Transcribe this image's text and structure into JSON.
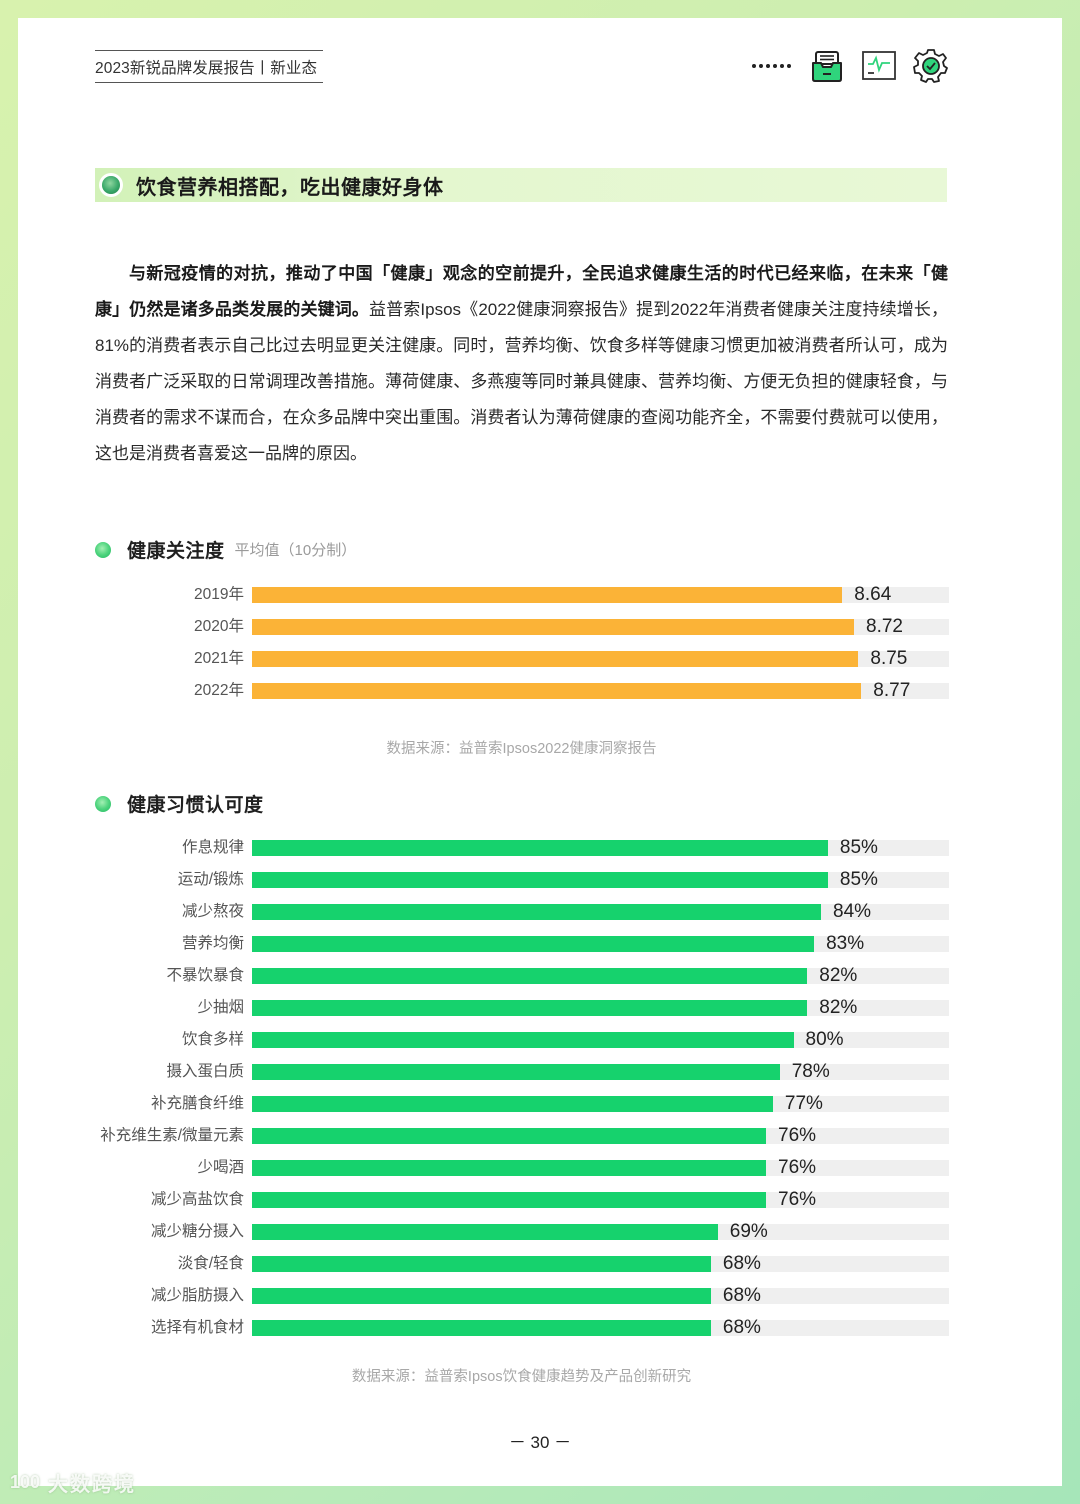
{
  "header": {
    "title": "2023新锐品牌发展报告丨新业态",
    "icons": [
      "more-dots-icon",
      "inbox-tray-icon",
      "chart-monitor-icon",
      "gear-check-icon"
    ]
  },
  "section": {
    "title": "饮食营养相搭配，吃出健康好身体"
  },
  "paragraph": {
    "bold_part": "与新冠疫情的对抗，推动了中国「健康」观念的空前提升，全民追求健康生活的时代已经来临，在未来「健康」仍然是诸多品类发展的关键词。",
    "normal_part": "益普索Ipsos《2022健康洞察报告》提到2022年消费者健康关注度持续增长，81%的消费者表示自己比过去明显更关注健康。同时，营养均衡、饮食多样等健康习惯更加被消费者所认可，成为消费者广泛采取的日常调理改善措施。薄荷健康、多燕瘦等同时兼具健康、营养均衡、方便无负担的健康轻食，与消费者的需求不谋而合，在众多品牌中突出重围。消费者认为薄荷健康的查阅功能齐全，不需要付费就可以使用，这也是消费者喜爱这一品牌的原因。"
  },
  "chart1": {
    "title": "健康关注度",
    "subtitle": "平均值（10分制）",
    "source": "数据来源：益普索Ipsos2022健康洞察报告",
    "color": "#fbb337",
    "axis_min": 4.6,
    "axis_max": 9.37,
    "rows": [
      {
        "label": "2019年",
        "value": 8.64,
        "display": "8.64"
      },
      {
        "label": "2020年",
        "value": 8.72,
        "display": "8.72"
      },
      {
        "label": "2021年",
        "value": 8.75,
        "display": "8.75"
      },
      {
        "label": "2022年",
        "value": 8.77,
        "display": "8.77"
      }
    ]
  },
  "chart2": {
    "title": "健康习惯认可度",
    "source": "数据来源：益普索Ipsos饮食健康趋势及产品创新研究",
    "color": "#16d26d",
    "axis_min": 1.3,
    "axis_max": 102.6,
    "rows": [
      {
        "label": "作息规律",
        "value": 85,
        "display": "85%"
      },
      {
        "label": "运动/锻炼",
        "value": 85,
        "display": "85%"
      },
      {
        "label": "减少熬夜",
        "value": 84,
        "display": "84%"
      },
      {
        "label": "营养均衡",
        "value": 83,
        "display": "83%"
      },
      {
        "label": "不暴饮暴食",
        "value": 82,
        "display": "82%"
      },
      {
        "label": "少抽烟",
        "value": 82,
        "display": "82%"
      },
      {
        "label": "饮食多样",
        "value": 80,
        "display": "80%"
      },
      {
        "label": "摄入蛋白质",
        "value": 78,
        "display": "78%"
      },
      {
        "label": "补充膳食纤维",
        "value": 77,
        "display": "77%"
      },
      {
        "label": "补充维生素/微量元素",
        "value": 76,
        "display": "76%"
      },
      {
        "label": "少喝酒",
        "value": 76,
        "display": "76%"
      },
      {
        "label": "减少高盐饮食",
        "value": 76,
        "display": "76%"
      },
      {
        "label": "减少糖分摄入",
        "value": 69,
        "display": "69%"
      },
      {
        "label": "淡食/轻食",
        "value": 68,
        "display": "68%"
      },
      {
        "label": "减少脂肪摄入",
        "value": 68,
        "display": "68%"
      },
      {
        "label": "选择有机食材",
        "value": 68,
        "display": "68%"
      }
    ]
  },
  "page_number": "－ 30 －",
  "watermark": {
    "logo": "100",
    "text": "大数跨境"
  },
  "chart_data": [
    {
      "type": "bar",
      "orientation": "horizontal",
      "title": "健康关注度",
      "subtitle": "平均值（10分制）",
      "categories": [
        "2019年",
        "2020年",
        "2021年",
        "2022年"
      ],
      "values": [
        8.64,
        8.72,
        8.75,
        8.77
      ],
      "xlabel": "",
      "ylabel": "",
      "color": "#fbb337",
      "grid": false,
      "source": "数据来源：益普索Ipsos2022健康洞察报告"
    },
    {
      "type": "bar",
      "orientation": "horizontal",
      "title": "健康习惯认可度",
      "categories": [
        "作息规律",
        "运动/锻炼",
        "减少熬夜",
        "营养均衡",
        "不暴饮暴食",
        "少抽烟",
        "饮食多样",
        "摄入蛋白质",
        "补充膳食纤维",
        "补充维生素/微量元素",
        "少喝酒",
        "减少高盐饮食",
        "减少糖分摄入",
        "淡食/轻食",
        "减少脂肪摄入",
        "选择有机食材"
      ],
      "values": [
        85,
        85,
        84,
        83,
        82,
        82,
        80,
        78,
        77,
        76,
        76,
        76,
        69,
        68,
        68,
        68
      ],
      "unit": "%",
      "xlabel": "",
      "ylabel": "",
      "color": "#16d26d",
      "grid": false,
      "source": "数据来源：益普索Ipsos饮食健康趋势及产品创新研究"
    }
  ]
}
